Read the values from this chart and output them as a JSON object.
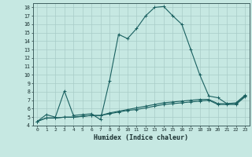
{
  "xlabel": "Humidex (Indice chaleur)",
  "ylabel": "",
  "xlim": [
    -0.5,
    23.5
  ],
  "ylim": [
    4,
    18.5
  ],
  "yticks": [
    4,
    5,
    6,
    7,
    8,
    9,
    10,
    11,
    12,
    13,
    14,
    15,
    16,
    17,
    18
  ],
  "xticks": [
    0,
    1,
    2,
    3,
    4,
    5,
    6,
    7,
    8,
    9,
    10,
    11,
    12,
    13,
    14,
    15,
    16,
    17,
    18,
    19,
    20,
    21,
    22,
    23
  ],
  "bg_color": "#c6e8e2",
  "line_color": "#1a6060",
  "grid_color": "#a8ccc8",
  "series": [
    [
      4.5,
      5.3,
      5.0,
      8.1,
      5.2,
      5.3,
      5.4,
      4.7,
      9.3,
      14.8,
      14.3,
      15.5,
      17.0,
      18.0,
      18.1,
      17.0,
      16.0,
      13.0,
      10.0,
      7.5,
      7.3,
      6.6,
      6.6,
      7.5
    ],
    [
      4.5,
      4.9,
      4.9,
      5.0,
      5.0,
      5.1,
      5.2,
      5.2,
      5.5,
      5.7,
      5.9,
      6.1,
      6.3,
      6.5,
      6.7,
      6.8,
      6.9,
      7.0,
      7.1,
      7.1,
      6.6,
      6.6,
      6.7,
      7.6
    ],
    [
      4.5,
      4.9,
      4.9,
      5.0,
      5.0,
      5.1,
      5.2,
      5.2,
      5.4,
      5.6,
      5.8,
      5.9,
      6.1,
      6.3,
      6.5,
      6.6,
      6.7,
      6.8,
      6.9,
      7.0,
      6.5,
      6.5,
      6.5,
      7.4
    ]
  ]
}
